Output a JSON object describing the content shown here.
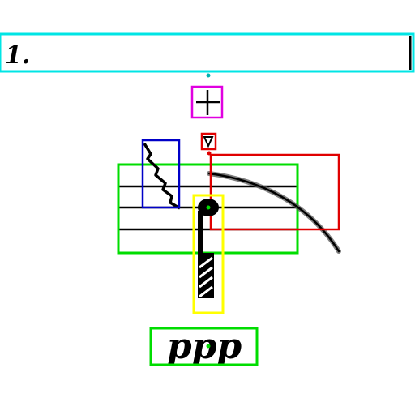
{
  "measure_number": "1.",
  "dynamic_marking": "ppp",
  "annotation_colors": {
    "cyan": "#00e5e5",
    "magenta": "#e000e0",
    "red": "#e00000",
    "blue": "#0000c8",
    "green": "#00dd00",
    "yellow": "#ffff00"
  },
  "ink_color": "#000000"
}
